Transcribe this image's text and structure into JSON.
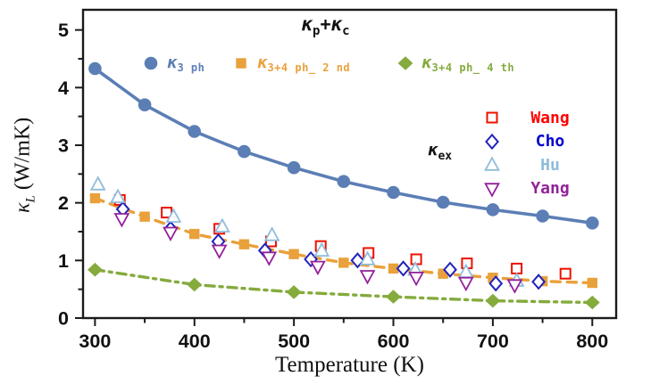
{
  "title": {
    "k1": "κ",
    "k1_sub": "p",
    "plus": "+",
    "k2": "κ",
    "k2_sub": "c"
  },
  "axes": {
    "xlabel": "Temperature (K)",
    "ylabel_kappa": "κ",
    "ylabel_sub": "L",
    "ylabel_units": " (W/mK)"
  },
  "legend_top": [
    {
      "kappa": "κ",
      "sub": "3 ph"
    },
    {
      "kappa": "κ",
      "sub": "3+4 ph_ 2 nd"
    },
    {
      "kappa": "κ",
      "sub": "3+4 ph_ 4 th"
    }
  ],
  "legend_exp": {
    "kappa": "κ",
    "sub": "ex",
    "items": [
      {
        "name": "Wang"
      },
      {
        "name": "Cho"
      },
      {
        "name": "Hu"
      },
      {
        "name": "Yang"
      }
    ]
  },
  "chart_data": {
    "type": "line",
    "title": "κp+κc",
    "xlabel": "Temperature (K)",
    "ylabel": "κL (W/mK)",
    "xlim": [
      288,
      824
    ],
    "ylim": [
      0,
      5.35
    ],
    "x_major_ticks": [
      300,
      400,
      500,
      600,
      700,
      800
    ],
    "x_minor_ticks": [
      350,
      450,
      550,
      650,
      750
    ],
    "y_major_ticks": [
      0,
      1,
      2,
      3,
      4,
      5
    ],
    "y_minor_ticks": [
      0.5,
      1.5,
      2.5,
      3.5,
      4.5
    ],
    "grid": false,
    "legend_position": "top and right inside plot",
    "series": [
      {
        "name": "kappa_3ph",
        "legend": "κ_3 ph",
        "marker": "circle",
        "line": "solid",
        "color": "#5b7eb5",
        "x": [
          300,
          350,
          400,
          450,
          500,
          550,
          600,
          650,
          700,
          750,
          800
        ],
        "y": [
          4.33,
          3.7,
          3.24,
          2.89,
          2.61,
          2.37,
          2.18,
          2.01,
          1.88,
          1.77,
          1.65
        ]
      },
      {
        "name": "kappa_3+4ph_2nd",
        "legend": "κ_3+4 ph_ 2 nd",
        "marker": "square",
        "line": "dashed",
        "color": "#e9a13b",
        "x": [
          300,
          350,
          400,
          450,
          500,
          550,
          600,
          650,
          700,
          750,
          800
        ],
        "y": [
          2.08,
          1.76,
          1.46,
          1.28,
          1.11,
          0.96,
          0.86,
          0.77,
          0.7,
          0.64,
          0.61
        ]
      },
      {
        "name": "kappa_3+4ph_4th",
        "legend": "κ_3+4 ph_ 4 th",
        "marker": "diamond",
        "line": "dashdot",
        "color": "#85ab3d",
        "x": [
          300,
          400,
          500,
          600,
          700,
          800
        ],
        "y": [
          0.84,
          0.58,
          0.45,
          0.37,
          0.3,
          0.27
        ]
      },
      {
        "name": "Wang",
        "legend": "Wang",
        "marker": "open-square",
        "line": "none",
        "color": "#ee1100",
        "label_color": "#fe0000",
        "x": [
          325,
          372,
          425,
          477,
          527,
          575,
          623,
          674,
          724,
          773
        ],
        "y": [
          2.05,
          1.83,
          1.55,
          1.33,
          1.25,
          1.13,
          1.02,
          0.95,
          0.86,
          0.77
        ]
      },
      {
        "name": "Cho",
        "legend": "Cho",
        "marker": "open-diamond",
        "line": "none",
        "color": "#2222bb",
        "label_color": "#0000cd",
        "x": [
          328,
          376,
          424,
          471,
          517,
          564,
          610,
          657,
          703,
          746
        ],
        "y": [
          1.89,
          1.55,
          1.33,
          1.17,
          1.02,
          1.0,
          0.86,
          0.84,
          0.6,
          0.63
        ]
      },
      {
        "name": "Hu",
        "legend": "Hu",
        "marker": "open-triangle-up",
        "line": "none",
        "color": "#8fbcdb",
        "label_color": "#8fbcdb",
        "x": [
          303,
          323,
          379,
          428,
          478,
          528,
          574,
          622,
          673,
          724
        ],
        "y": [
          2.32,
          2.1,
          1.76,
          1.59,
          1.44,
          1.17,
          1.02,
          0.84,
          0.8,
          0.65
        ]
      },
      {
        "name": "Yang",
        "legend": "Yang",
        "marker": "open-triangle-down",
        "line": "none",
        "color": "#93219b",
        "label_color": "#93219b",
        "x": [
          327,
          376,
          425,
          475,
          524,
          574,
          623,
          673,
          722
        ],
        "y": [
          1.72,
          1.48,
          1.17,
          1.05,
          0.89,
          0.73,
          0.7,
          0.61,
          0.57
        ]
      }
    ]
  }
}
